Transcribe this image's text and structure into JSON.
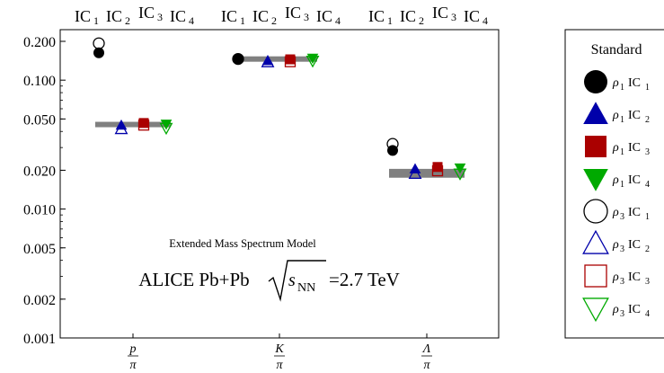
{
  "chart_data": {
    "type": "scatter",
    "title": "",
    "xlabel": "",
    "ylabel": "",
    "yscale": "log",
    "ylim": [
      0.001,
      0.25
    ],
    "yticks": [
      {
        "value": 0.2,
        "label": "0.200"
      },
      {
        "value": 0.1,
        "label": "0.100"
      },
      {
        "value": 0.05,
        "label": "0.050"
      },
      {
        "value": 0.02,
        "label": "0.020"
      },
      {
        "value": 0.01,
        "label": "0.010"
      },
      {
        "value": 0.005,
        "label": "0.005"
      },
      {
        "value": 0.002,
        "label": "0.002"
      },
      {
        "value": 0.001,
        "label": "0.001"
      }
    ],
    "categories": [
      {
        "num": "p",
        "den": "π"
      },
      {
        "num": "K",
        "den": "π"
      },
      {
        "num": "Λ",
        "den": "π"
      }
    ],
    "column_header": {
      "items": [
        {
          "base": "IC",
          "sub": "1"
        },
        {
          "base": "IC",
          "sub": "2"
        },
        {
          "base": "IC",
          "sub": "3"
        },
        {
          "base": "IC",
          "sub": "4"
        }
      ]
    },
    "experimental_bands": [
      {
        "category": 0,
        "low": 0.0435,
        "high": 0.0475
      },
      {
        "category": 1,
        "low": 0.139,
        "high": 0.153
      },
      {
        "category": 2,
        "low": 0.0175,
        "high": 0.0205
      }
    ],
    "band_color": "#808080",
    "series": [
      {
        "rho": "1",
        "ic": "1",
        "marker": "circle",
        "filled": true,
        "color": "#000000",
        "values": [
          0.163,
          0.146,
          0.0285
        ]
      },
      {
        "rho": "1",
        "ic": "2",
        "marker": "triangle-up",
        "filled": true,
        "color": "#0000aa",
        "values": [
          0.0448,
          0.142,
          0.0205
        ]
      },
      {
        "rho": "1",
        "ic": "3",
        "marker": "square",
        "filled": true,
        "color": "#aa0000",
        "values": [
          0.0465,
          0.145,
          0.0212
        ]
      },
      {
        "rho": "1",
        "ic": "4",
        "marker": "triangle-down",
        "filled": true,
        "color": "#00aa00",
        "values": [
          0.0455,
          0.148,
          0.0208
        ]
      },
      {
        "rho": "3",
        "ic": "1",
        "marker": "circle",
        "filled": false,
        "color": "#000000",
        "values": [
          0.193,
          0.146,
          0.032
        ]
      },
      {
        "rho": "3",
        "ic": "2",
        "marker": "triangle-up",
        "filled": false,
        "color": "#0000aa",
        "values": [
          0.0418,
          0.138,
          0.0188
        ]
      },
      {
        "rho": "3",
        "ic": "3",
        "marker": "square",
        "filled": false,
        "color": "#aa0000",
        "values": [
          0.0448,
          0.139,
          0.0198
        ]
      },
      {
        "rho": "3",
        "ic": "4",
        "marker": "triangle-down",
        "filled": false,
        "color": "#00aa00",
        "values": [
          0.0425,
          0.141,
          0.0188
        ]
      }
    ],
    "annotations": {
      "model_name": "Extended Mass Spectrum Model",
      "experiment": "ALICE Pb+Pb",
      "energy_symbol": "s",
      "energy_sub": "NN",
      "energy_value": "=2.7 TeV"
    },
    "legend": {
      "title": "Standard",
      "placement": "right",
      "rho_symbol": "ρ"
    }
  }
}
